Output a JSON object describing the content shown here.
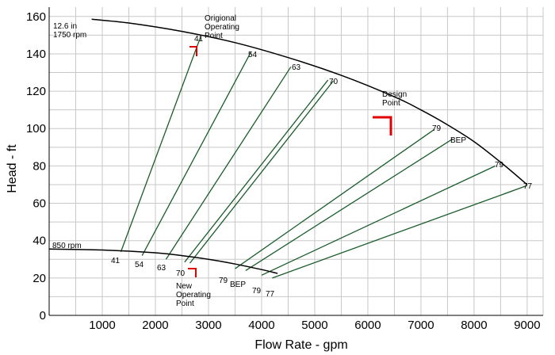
{
  "chart_data": {
    "type": "line",
    "xlabel": "Flow Rate - gpm",
    "ylabel": "Head - ft",
    "xlim": [
      0,
      9300
    ],
    "ylim": [
      0,
      165
    ],
    "grid": true,
    "x_ticks": [
      1000,
      2000,
      3000,
      4000,
      5000,
      6000,
      7000,
      8000,
      9000
    ],
    "y_ticks": [
      0,
      20,
      40,
      60,
      80,
      100,
      120,
      140,
      160
    ],
    "colors": {
      "curve": "#000000",
      "efficiency": "#1a5c2a",
      "marker": "#e00000",
      "grid": "#c8c8c8"
    },
    "curves": [
      {
        "label": "12.6 in\n1750 rpm",
        "points": [
          [
            800,
            158.5
          ],
          [
            1500,
            156.5
          ],
          [
            2500,
            152
          ],
          [
            3500,
            146
          ],
          [
            4500,
            138
          ],
          [
            5500,
            128.5
          ],
          [
            6500,
            117
          ],
          [
            7000,
            110
          ],
          [
            7500,
            102
          ],
          [
            8000,
            93
          ],
          [
            8500,
            82
          ],
          [
            9000,
            70
          ]
        ]
      },
      {
        "label": "850 rpm",
        "points": [
          [
            0,
            35.5
          ],
          [
            1000,
            35
          ],
          [
            2000,
            33.5
          ],
          [
            2500,
            32
          ],
          [
            3000,
            30
          ],
          [
            3500,
            27.5
          ],
          [
            4000,
            24.5
          ],
          [
            4300,
            22.5
          ]
        ]
      }
    ],
    "efficiency_lines": [
      {
        "label": "41",
        "from": [
          1350,
          34
        ],
        "to": [
          2850,
          149
        ]
      },
      {
        "label": "54",
        "from": [
          1750,
          32
        ],
        "to": [
          3800,
          141
        ]
      },
      {
        "label": "63",
        "from": [
          2200,
          30
        ],
        "to": [
          4550,
          133
        ]
      },
      {
        "label": "70",
        "from": [
          2550,
          28.5
        ],
        "to": [
          5250,
          126
        ]
      },
      {
        "label": "70",
        "from": [
          2650,
          28
        ],
        "to": [
          5350,
          125.5
        ]
      },
      {
        "label": "79",
        "from": [
          3500,
          25
        ],
        "to": [
          7250,
          99.5
        ]
      },
      {
        "label": "BEP",
        "from": [
          3700,
          24
        ],
        "to": [
          7600,
          94.5
        ]
      },
      {
        "label": "79",
        "from": [
          4000,
          21.5
        ],
        "to": [
          8400,
          80
        ]
      },
      {
        "label": "77",
        "from": [
          4200,
          20
        ],
        "to": [
          9000,
          69.5
        ]
      }
    ],
    "upper_labels": [
      "41",
      "54",
      "63",
      "70",
      "79",
      "BEP",
      "79",
      "77"
    ],
    "lower_labels": [
      "41",
      "54",
      "63",
      "70",
      "79",
      "BEP",
      "79",
      "77"
    ],
    "annotations": [
      {
        "text": "Origional\nOperating\nPoint"
      },
      {
        "text": "Design\nPoint"
      },
      {
        "text": "New\nOperating\nPoint"
      }
    ]
  }
}
